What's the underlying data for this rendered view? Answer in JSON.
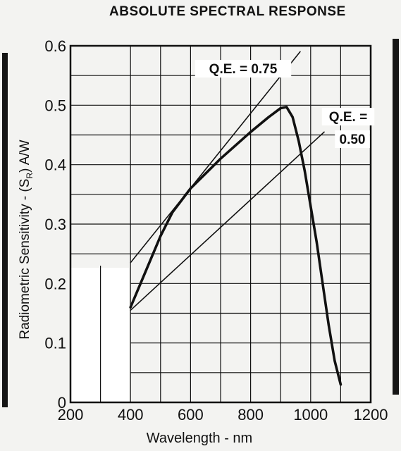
{
  "page": {
    "background": "#f3f3f1",
    "ink": "#111111"
  },
  "chart_data": {
    "type": "line",
    "title": "ABSOLUTE SPECTRAL RESPONSE",
    "xlabel": "Wavelength - nm",
    "ylabel_prefix": "Radiometric Sensitivity - (S",
    "ylabel_sub": "R",
    "ylabel_suffix": ") A/W",
    "xlim": [
      200,
      1200
    ],
    "ylim": [
      0,
      0.6
    ],
    "x_ticks": [
      "200",
      "400",
      "600",
      "800",
      "1000",
      "1200"
    ],
    "y_ticks": [
      "0",
      "0.1",
      "0.2",
      "0.3",
      "0.4",
      "0.5",
      "0.6"
    ],
    "grid": true,
    "series": [
      {
        "name": "",
        "style": "thick",
        "x": [
          400,
          450,
          500,
          540,
          600,
          700,
          800,
          860,
          900,
          920,
          940,
          960,
          980,
          1000,
          1020,
          1040,
          1060,
          1080,
          1100
        ],
        "y": [
          0.16,
          0.22,
          0.28,
          0.32,
          0.36,
          0.41,
          0.455,
          0.48,
          0.495,
          0.497,
          0.48,
          0.44,
          0.39,
          0.33,
          0.27,
          0.2,
          0.13,
          0.07,
          0.03
        ]
      },
      {
        "name": "Q.E. = 0.75",
        "style": "thin",
        "x": [
          400,
          965
        ],
        "y": [
          0.235,
          0.59
        ]
      },
      {
        "name": "Q.E. = 0.50",
        "style": "thin",
        "x": [
          400,
          1045
        ],
        "y": [
          0.155,
          0.455
        ]
      }
    ],
    "annotations": [
      {
        "text": "Q.E. = 0.75"
      },
      {
        "text": "Q.E. ="
      },
      {
        "text": "0.50"
      }
    ]
  }
}
